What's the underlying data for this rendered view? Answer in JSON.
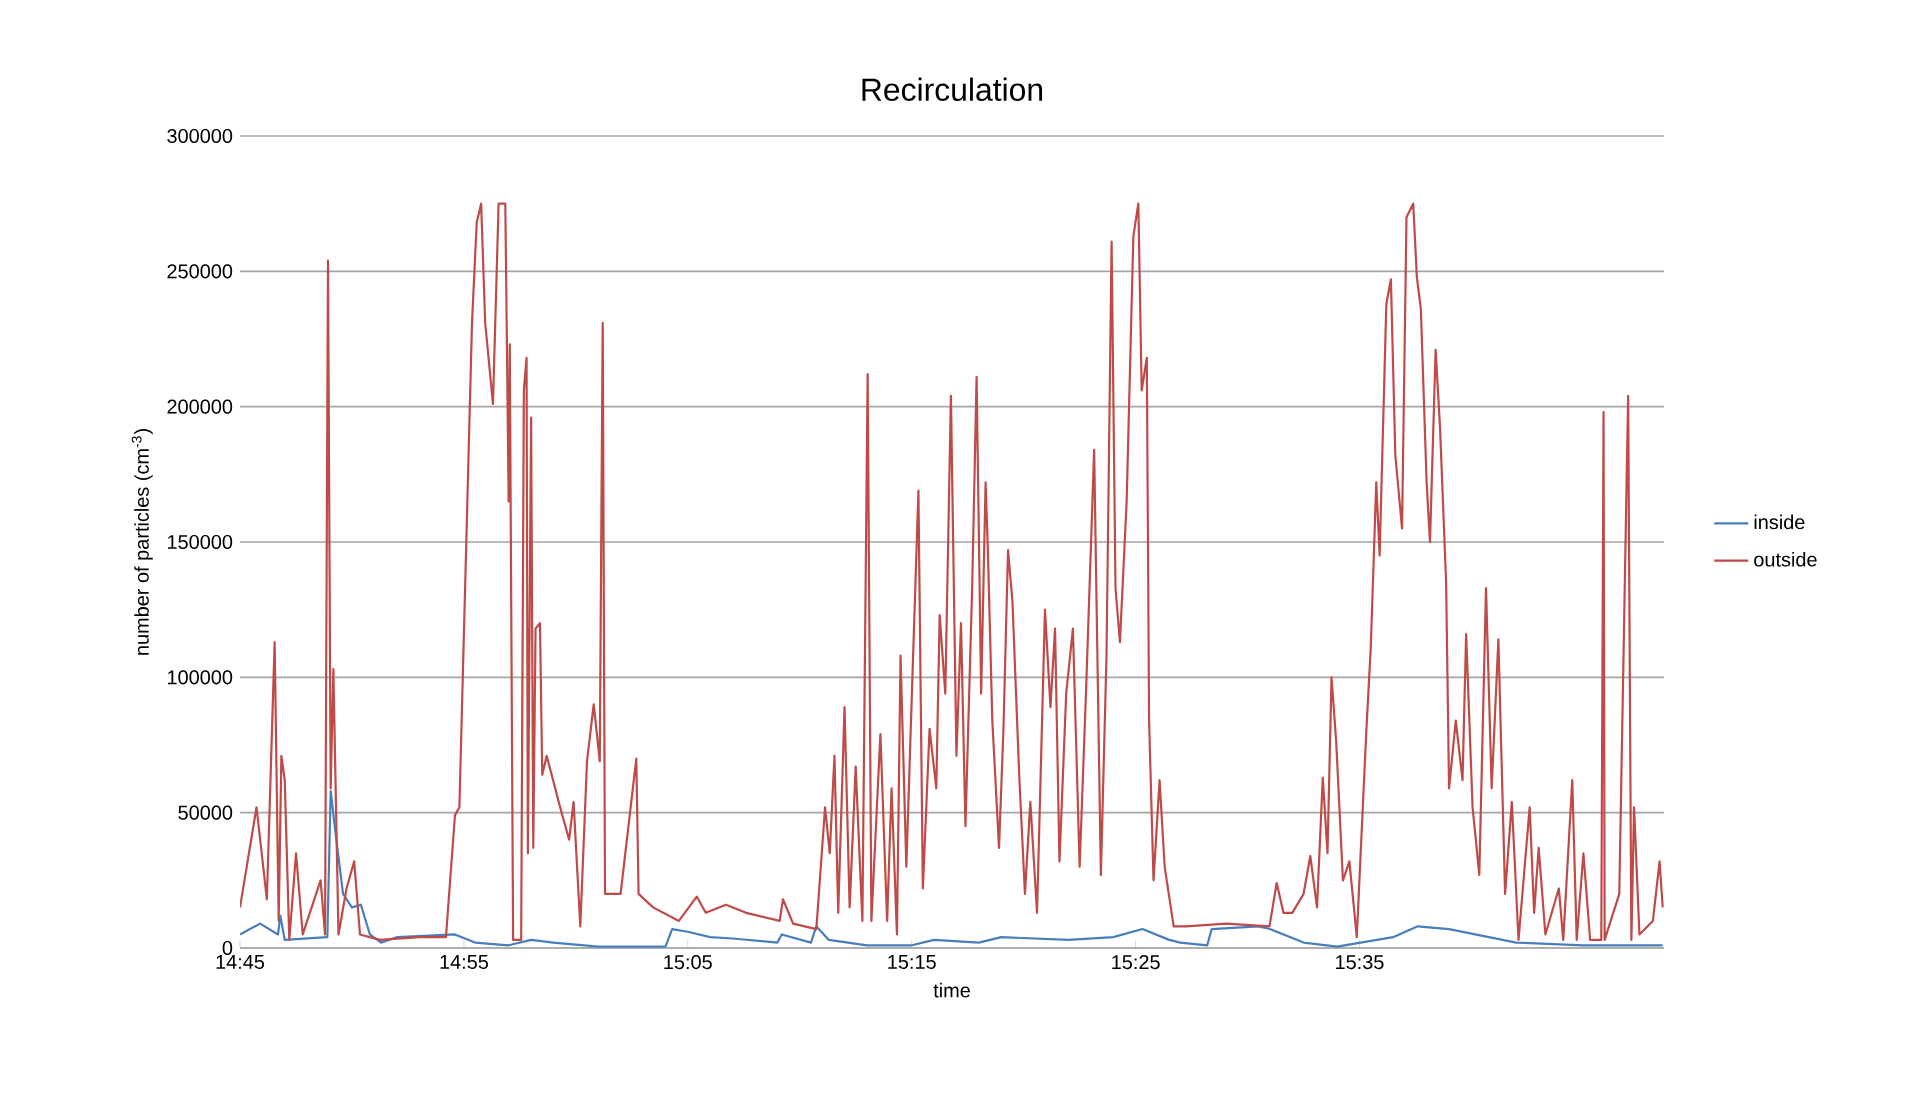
{
  "chart_data": {
    "type": "line",
    "title": "Recirculation",
    "xlabel": "time",
    "ylabel": "number of particles (cm$^{-3}$)",
    "xlim": [
      14.75,
      15.81
    ],
    "xticks": [
      {
        "value": 14.75,
        "label": "14:45"
      },
      {
        "value": 14.9167,
        "label": "14:55"
      },
      {
        "value": 15.0833,
        "label": "15:05"
      },
      {
        "value": 15.25,
        "label": "15:15"
      },
      {
        "value": 15.4167,
        "label": "15:25"
      },
      {
        "value": 15.5833,
        "label": "15:35"
      }
    ],
    "ylim": [
      0,
      300000
    ],
    "yticks": [
      0,
      50000,
      100000,
      150000,
      200000,
      250000,
      300000
    ],
    "grid": "y",
    "legend": "right",
    "series": [
      {
        "name": "inside",
        "color": "#4a7ebb",
        "x": [
          14.75,
          14.765,
          14.7783,
          14.78,
          14.7833,
          14.815,
          14.8175,
          14.8217,
          14.8267,
          14.8333,
          14.84,
          14.8467,
          14.855,
          14.8667,
          14.91,
          14.925,
          14.95,
          14.9667,
          14.9833,
          15.0167,
          15.0667,
          15.0717,
          15.0833,
          15.1,
          15.1167,
          15.15,
          15.1533,
          15.175,
          15.179,
          15.1883,
          15.2167,
          15.25,
          15.2667,
          15.3,
          15.3167,
          15.3667,
          15.4,
          15.4217,
          15.4417,
          15.45,
          15.47,
          15.4733,
          15.5083,
          15.5167,
          15.5417,
          15.5667,
          15.6083,
          15.6267,
          15.65,
          15.7,
          15.75,
          15.809
        ],
        "values": [
          5000,
          9000,
          5000,
          12000,
          3000,
          4000,
          58000,
          40000,
          20000,
          15000,
          16000,
          5000,
          2000,
          4000,
          5000,
          2000,
          1000,
          3000,
          2000,
          500,
          500,
          7000,
          6000,
          4000,
          3500,
          2000,
          5000,
          2000,
          8000,
          3000,
          1000,
          1000,
          3000,
          2000,
          4000,
          3000,
          4000,
          7000,
          3000,
          2000,
          1000,
          7000,
          8000,
          7000,
          2000,
          500,
          4000,
          8000,
          7000,
          2000,
          1000,
          1000
        ]
      },
      {
        "name": "outside",
        "color": "#be4b48",
        "x": [
          14.75,
          14.7623,
          14.77,
          14.7758,
          14.7788,
          14.7808,
          14.7833,
          14.7867,
          14.7917,
          14.7967,
          14.81,
          14.8133,
          14.8155,
          14.8175,
          14.8195,
          14.8233,
          14.8293,
          14.835,
          14.8393,
          14.8542,
          14.8833,
          14.9033,
          14.91,
          14.9133,
          14.9227,
          14.9262,
          14.9295,
          14.9325,
          14.9383,
          14.9425,
          14.9475,
          14.95,
          14.9508,
          14.9533,
          14.9593,
          14.9613,
          14.9633,
          14.9643,
          14.9667,
          14.9683,
          14.97,
          14.9733,
          14.975,
          14.9783,
          14.9883,
          14.995,
          14.9983,
          15.0033,
          15.0083,
          15.0133,
          15.0178,
          15.02,
          15.0217,
          15.0333,
          15.045,
          15.0467,
          15.0575,
          15.0767,
          15.09,
          15.0967,
          15.1117,
          15.1267,
          15.1517,
          15.1542,
          15.1617,
          15.179,
          15.1855,
          15.189,
          15.1925,
          15.1953,
          15.2,
          15.2038,
          15.2083,
          15.2133,
          15.2172,
          15.22,
          15.2267,
          15.2317,
          15.235,
          15.239,
          15.2417,
          15.246,
          15.255,
          15.2583,
          15.2633,
          15.2683,
          15.2708,
          15.275,
          15.2792,
          15.2833,
          15.2867,
          15.29,
          15.295,
          15.2983,
          15.3017,
          15.305,
          15.3067,
          15.31,
          15.315,
          15.3183,
          15.3217,
          15.325,
          15.33,
          15.3343,
          15.3383,
          15.3433,
          15.3492,
          15.3533,
          15.3567,
          15.36,
          15.365,
          15.37,
          15.375,
          15.38,
          15.3858,
          15.3908,
          15.395,
          15.3988,
          15.4017,
          15.405,
          15.41,
          15.415,
          15.4187,
          15.4212,
          15.425,
          15.4267,
          15.43,
          15.4345,
          15.4383,
          15.445,
          15.4543,
          15.4842,
          15.5163,
          15.5217,
          15.5267,
          15.5333,
          15.5417,
          15.5467,
          15.5517,
          15.556,
          15.5595,
          15.5625,
          15.566,
          15.571,
          15.5758,
          15.5813,
          15.5883,
          15.5917,
          15.5958,
          15.5983,
          15.6033,
          15.6067,
          15.61,
          15.615,
          15.6183,
          15.6233,
          15.626,
          15.629,
          15.6333,
          15.6358,
          15.64,
          15.6433,
          15.6478,
          15.65,
          15.655,
          15.66,
          15.6627,
          15.6675,
          15.6725,
          15.6775,
          15.6817,
          15.6867,
          15.6917,
          15.6967,
          15.7017,
          15.71,
          15.7133,
          15.7167,
          15.7217,
          15.7317,
          15.735,
          15.7417,
          15.745,
          15.75,
          15.755,
          15.7633,
          15.765,
          15.7658,
          15.7767,
          15.7833,
          15.7857,
          15.7877,
          15.7917,
          15.8017,
          15.8067,
          15.809
        ],
        "values": [
          15000,
          52000,
          18000,
          113000,
          10000,
          71000,
          62000,
          3000,
          35000,
          5000,
          25000,
          5000,
          254000,
          59000,
          103000,
          5000,
          22000,
          32000,
          5000,
          3000,
          4000,
          4000,
          49000,
          52000,
          231000,
          268000,
          275000,
          231000,
          201000,
          275000,
          275000,
          165000,
          223000,
          3000,
          3000,
          206000,
          218000,
          35000,
          196000,
          37000,
          118000,
          120000,
          64000,
          71000,
          52000,
          40000,
          54000,
          8000,
          69000,
          90000,
          69000,
          231000,
          20000,
          20000,
          70000,
          20000,
          15000,
          10000,
          19000,
          13000,
          16000,
          13000,
          10000,
          18000,
          9000,
          7000,
          52000,
          35000,
          71000,
          13000,
          89000,
          15000,
          67000,
          10000,
          212000,
          10000,
          79000,
          10000,
          59000,
          5000,
          108000,
          30000,
          169000,
          22000,
          81000,
          59000,
          123000,
          94000,
          204000,
          71000,
          120000,
          45000,
          133000,
          211000,
          94000,
          172000,
          147000,
          84000,
          37000,
          81000,
          147000,
          128000,
          64000,
          20000,
          54000,
          13000,
          125000,
          89000,
          118000,
          32000,
          94000,
          118000,
          30000,
          98000,
          184000,
          27000,
          108000,
          261000,
          133000,
          113000,
          165000,
          263000,
          275000,
          206000,
          218000,
          84000,
          25000,
          62000,
          30000,
          8000,
          8000,
          9000,
          8000,
          24000,
          13000,
          13000,
          20000,
          34000,
          15000,
          63000,
          35000,
          100000,
          76000,
          25000,
          32000,
          4000,
          79000,
          111000,
          172000,
          145000,
          238000,
          247000,
          182000,
          155000,
          270000,
          275000,
          248000,
          236000,
          172000,
          150000,
          221000,
          192000,
          135000,
          59000,
          84000,
          62000,
          116000,
          52000,
          27000,
          133000,
          59000,
          114000,
          20000,
          54000,
          3000,
          52000,
          13000,
          37000,
          5000,
          22000,
          3000,
          62000,
          3000,
          35000,
          3000,
          3000,
          198000,
          3000,
          20000,
          204000,
          3000,
          52000,
          5000,
          10000,
          32000,
          15000
        ]
      }
    ]
  }
}
